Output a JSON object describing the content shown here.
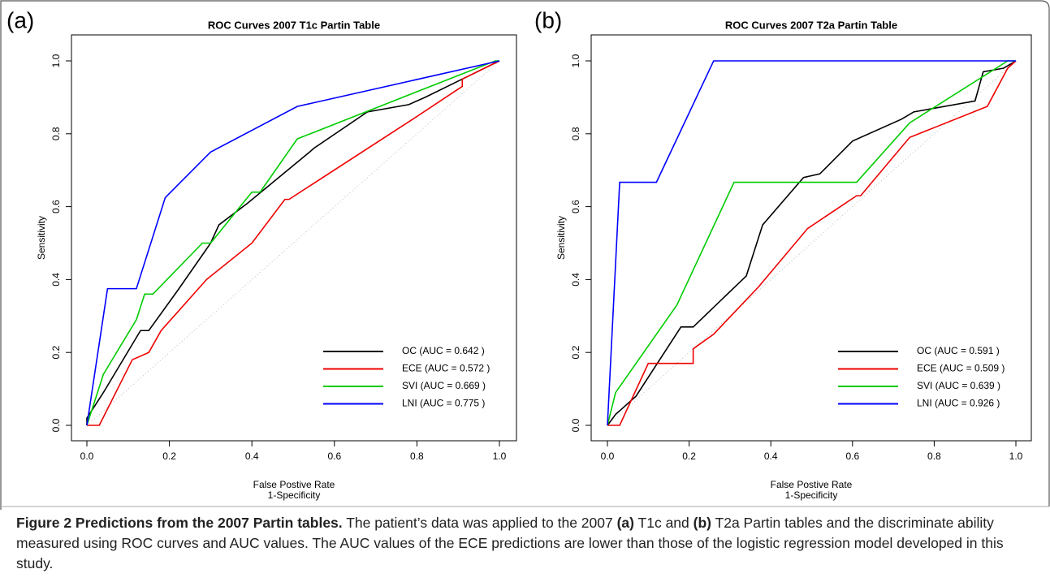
{
  "chart_data": [
    {
      "type": "line",
      "panel": "(a)",
      "title": "ROC Curves 2007 T1c Partin Table",
      "xlabel": [
        "False Postive Rate",
        "1-Specificity"
      ],
      "ylabel": "Sensitivity",
      "xlim": [
        0,
        1
      ],
      "ylim": [
        0,
        1
      ],
      "legend": "bottom right",
      "diagonal": true,
      "xticks": [
        {
          "value": 0,
          "label": "0.0"
        },
        {
          "value": 0.2,
          "label": "0.2"
        },
        {
          "value": 0.4,
          "label": "0.4"
        },
        {
          "value": 0.6,
          "label": "0.6"
        },
        {
          "value": 0.8,
          "label": "0.8"
        },
        {
          "value": 1,
          "label": "1.0"
        }
      ],
      "yticks": [
        {
          "value": 0,
          "label": "0.0"
        },
        {
          "value": 0.2,
          "label": "0.2"
        },
        {
          "value": 0.4,
          "label": "0.4"
        },
        {
          "value": 0.6,
          "label": "0.6"
        },
        {
          "value": 0.8,
          "label": "0.8"
        },
        {
          "value": 1,
          "label": "1.0"
        }
      ],
      "series": [
        {
          "name": "OC (AUC = 0.642 )",
          "color": "#000000",
          "x": [
            0,
            0,
            0.04,
            0.13,
            0.15,
            0.22,
            0.3,
            0.32,
            0.39,
            0.54,
            0.55,
            0.68,
            0.78,
            0.82,
            0.91,
            1
          ],
          "values": [
            0,
            0.02,
            0.09,
            0.26,
            0.26,
            0.37,
            0.5,
            0.55,
            0.61,
            0.75,
            0.76,
            0.86,
            0.88,
            0.9,
            0.95,
            1
          ]
        },
        {
          "name": "ECE (AUC = 0.572 )",
          "color": "#ee0000",
          "x": [
            0,
            0.03,
            0.11,
            0.15,
            0.18,
            0.29,
            0.4,
            0.48,
            0.49,
            0.79,
            0.91,
            0.91,
            1
          ],
          "values": [
            0,
            0,
            0.18,
            0.2,
            0.26,
            0.4,
            0.5,
            0.62,
            0.62,
            0.84,
            0.93,
            0.95,
            1
          ]
        },
        {
          "name": "SVI (AUC = 0.669 )",
          "color": "#00cc00",
          "x": [
            0,
            0.04,
            0.12,
            0.14,
            0.16,
            0.28,
            0.3,
            0.4,
            0.42,
            0.51,
            0.99,
            1
          ],
          "values": [
            0,
            0.14,
            0.29,
            0.36,
            0.36,
            0.5,
            0.5,
            0.64,
            0.64,
            0.786,
            1,
            1
          ]
        },
        {
          "name": "LNI (AUC = 0.775 )",
          "color": "#0000ff",
          "x": [
            0,
            0.05,
            0.12,
            0.19,
            0.3,
            0.51,
            1
          ],
          "values": [
            0,
            0.375,
            0.375,
            0.625,
            0.75,
            0.875,
            1
          ]
        }
      ]
    },
    {
      "type": "line",
      "panel": "(b)",
      "title": "ROC Curves 2007 T2a Partin Table",
      "xlabel": [
        "False Postive Rate",
        "1-Specificity"
      ],
      "ylabel": "Sensitivity",
      "xlim": [
        0,
        1
      ],
      "ylim": [
        0,
        1
      ],
      "legend": "bottom right",
      "diagonal": true,
      "xticks": [
        {
          "value": 0,
          "label": "0.0"
        },
        {
          "value": 0.2,
          "label": "0.2"
        },
        {
          "value": 0.4,
          "label": "0.4"
        },
        {
          "value": 0.6,
          "label": "0.6"
        },
        {
          "value": 0.8,
          "label": "0.8"
        },
        {
          "value": 1,
          "label": "1.0"
        }
      ],
      "yticks": [
        {
          "value": 0,
          "label": "0.0"
        },
        {
          "value": 0.2,
          "label": "0.2"
        },
        {
          "value": 0.4,
          "label": "0.4"
        },
        {
          "value": 0.6,
          "label": "0.6"
        },
        {
          "value": 0.8,
          "label": "0.8"
        },
        {
          "value": 1,
          "label": "1.0"
        }
      ],
      "series": [
        {
          "name": "OC (AUC = 0.591 )",
          "color": "#000000",
          "x": [
            0,
            0.02,
            0.07,
            0.18,
            0.21,
            0.34,
            0.38,
            0.48,
            0.52,
            0.6,
            0.72,
            0.75,
            0.9,
            0.92,
            0.97,
            1
          ],
          "values": [
            0,
            0.03,
            0.08,
            0.27,
            0.27,
            0.41,
            0.55,
            0.68,
            0.69,
            0.78,
            0.84,
            0.86,
            0.89,
            0.97,
            0.98,
            1
          ]
        },
        {
          "name": "ECE (AUC = 0.509 )",
          "color": "#ee0000",
          "x": [
            0,
            0.03,
            0.1,
            0.21,
            0.21,
            0.26,
            0.37,
            0.49,
            0.61,
            0.62,
            0.74,
            0.93,
            0.98,
            1
          ],
          "values": [
            0,
            0,
            0.17,
            0.17,
            0.21,
            0.25,
            0.38,
            0.54,
            0.63,
            0.63,
            0.79,
            0.875,
            0.98,
            1
          ]
        },
        {
          "name": "SVI (AUC = 0.639 )",
          "color": "#00cc00",
          "x": [
            0,
            0.02,
            0.17,
            0.31,
            0.61,
            0.74,
            0.98,
            1
          ],
          "values": [
            0,
            0.09,
            0.33,
            0.667,
            0.667,
            0.83,
            1,
            1
          ]
        },
        {
          "name": "LNI (AUC = 0.926 )",
          "color": "#0000ff",
          "x": [
            0,
            0.03,
            0.12,
            0.26,
            1
          ],
          "values": [
            0,
            0.667,
            0.667,
            1,
            1
          ]
        }
      ]
    }
  ],
  "caption": {
    "parts": [
      {
        "text": "Figure 2 Predictions from the 2007 Partin tables.",
        "bold": true
      },
      {
        "text": " The patient’s data was applied to the 2007 ",
        "bold": false
      },
      {
        "text": "(a)",
        "bold": true
      },
      {
        "text": " T1c and ",
        "bold": false
      },
      {
        "text": "(b)",
        "bold": true
      },
      {
        "text": " T2a Partin tables and the discriminate ability measured using ROC curves and AUC values. The AUC values of the ECE predictions are lower than those of the logistic regression model developed in this study.",
        "bold": false
      }
    ]
  }
}
